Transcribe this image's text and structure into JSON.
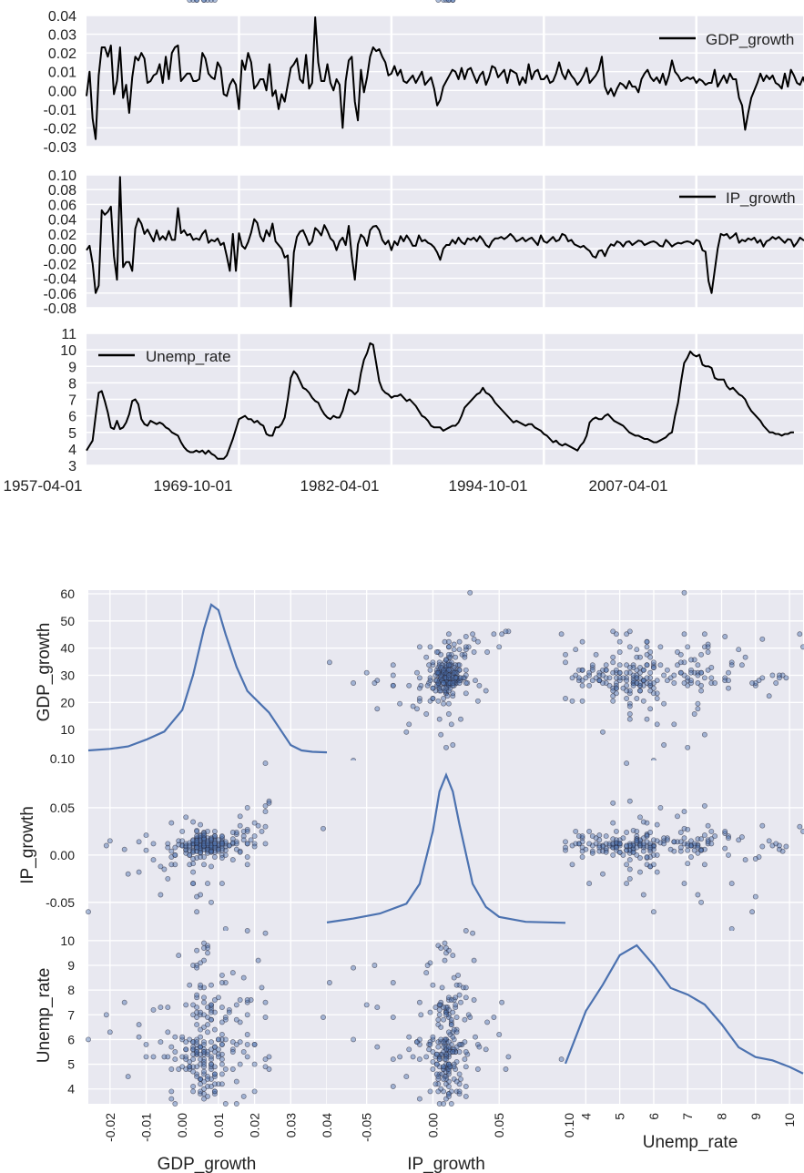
{
  "colors": {
    "panel_bg": "#e8e8f0",
    "grid": "#ffffff",
    "ts_line": "#000000",
    "kde_line": "#4c72b0",
    "scatter_fill": "#4c72b0",
    "scatter_edge": "#2a2a3a"
  },
  "chart_data": [
    {
      "type": "line",
      "series_name": "GDP_growth",
      "legend_label": "GDP_growth",
      "legend": "top-right",
      "grid": true,
      "ylim": [
        -0.03,
        0.04
      ],
      "yticks": [
        "0.04",
        "0.03",
        "0.02",
        "0.01",
        "0.00",
        "-0.01",
        "-0.02",
        "-0.03"
      ],
      "x_start": "1957-04-01",
      "x_end": "2016-01-01",
      "quarters": 236,
      "values": [
        -0.003,
        0.01,
        -0.015,
        -0.026,
        0.008,
        0.023,
        0.023,
        0.018,
        0.024,
        -0.002,
        0.005,
        0.023,
        -0.004,
        0.003,
        -0.012,
        0.007,
        0.018,
        0.016,
        0.02,
        0.017,
        0.004,
        0.005,
        0.008,
        0.009,
        0.014,
        0.004,
        0.018,
        0.006,
        0.02,
        0.023,
        0.024,
        0.005,
        0.007,
        0.009,
        0.009,
        0.005,
        0.005,
        0.006,
        0.02,
        0.017,
        0.009,
        0.007,
        0.006,
        0.015,
        0.012,
        -0.002,
        -0.003,
        0.003,
        0.006,
        0.003,
        -0.01,
        0.016,
        0.011,
        0.02,
        0.015,
        0.001,
        0.003,
        0.006,
        0.006,
        0.0,
        0.014,
        -0.003,
        0.0,
        -0.01,
        -0.002,
        -0.006,
        0.003,
        0.012,
        0.014,
        0.017,
        0.006,
        0.004,
        0.019,
        0.001,
        0.004,
        0.039,
        0.015,
        0.005,
        0.005,
        0.014,
        0.004,
        0.0,
        0.006,
        0.003,
        -0.02,
        0.005,
        0.016,
        0.018,
        -0.006,
        -0.016,
        0.011,
        -0.001,
        0.007,
        0.018,
        0.023,
        0.021,
        0.022,
        0.018,
        0.015,
        0.008,
        0.009,
        0.013,
        0.008,
        0.011,
        0.005,
        0.004,
        0.006,
        0.008,
        0.004,
        0.007,
        0.01,
        0.003,
        0.005,
        0.007,
        0.001,
        -0.008,
        -0.005,
        0.002,
        0.005,
        0.008,
        0.011,
        0.01,
        0.006,
        0.012,
        0.006,
        0.011,
        0.012,
        0.008,
        0.004,
        0.008,
        0.01,
        0.003,
        0.007,
        0.013,
        0.012,
        0.007,
        0.009,
        0.011,
        0.004,
        0.011,
        0.01,
        0.009,
        0.003,
        0.007,
        0.004,
        0.014,
        0.006,
        0.01,
        0.011,
        0.006,
        0.006,
        0.008,
        0.004,
        0.005,
        0.009,
        0.015,
        0.009,
        0.006,
        0.011,
        0.008,
        0.006,
        0.003,
        0.005,
        0.008,
        0.012,
        0.004,
        0.006,
        0.008,
        0.011,
        0.018,
        0.002,
        -0.002,
        0.001,
        -0.003,
        0.001,
        0.004,
        0.003,
        0.001,
        0.005,
        0.002,
        0.002,
        -0.001,
        0.006,
        0.009,
        0.011,
        0.007,
        0.005,
        0.007,
        0.004,
        0.009,
        0.003,
        0.008,
        0.016,
        0.01,
        0.008,
        0.005,
        0.006,
        0.007,
        0.006,
        0.007,
        0.004,
        0.006,
        0.005,
        0.003,
        0.004,
        0.004,
        0.011,
        0.002,
        0.005,
        0.008,
        0.004,
        0.009,
        0.006,
        0.006,
        -0.004,
        -0.008,
        -0.021,
        -0.012,
        -0.004,
        0.0,
        0.004,
        0.009,
        0.005,
        0.008,
        0.006,
        0.008,
        0.004,
        0.003,
        0.001,
        0.009,
        0.002,
        0.011,
        0.008,
        0.004,
        0.003,
        0.007,
        0.002,
        0.004,
        0.008,
        0.009,
        0.006
      ]
    },
    {
      "type": "line",
      "series_name": "IP_growth",
      "legend_label": "IP_growth",
      "legend": "top-right",
      "grid": true,
      "ylim": [
        -0.08,
        0.1
      ],
      "yticks": [
        "0.10",
        "0.08",
        "0.06",
        "0.04",
        "0.02",
        "0.00",
        "-0.02",
        "-0.04",
        "-0.06",
        "-0.08"
      ],
      "x_start": "1957-04-01",
      "x_end": "2016-01-01",
      "quarters": 236,
      "values": [
        -0.002,
        0.004,
        -0.02,
        -0.06,
        -0.05,
        0.052,
        0.046,
        0.05,
        0.057,
        -0.01,
        -0.042,
        0.097,
        -0.025,
        -0.018,
        -0.018,
        -0.03,
        0.027,
        0.041,
        0.034,
        0.02,
        0.026,
        0.018,
        0.01,
        0.025,
        0.012,
        0.017,
        0.012,
        0.024,
        0.012,
        0.012,
        0.055,
        0.021,
        0.025,
        0.018,
        0.02,
        0.012,
        0.014,
        0.012,
        0.02,
        0.025,
        0.008,
        0.012,
        0.01,
        0.014,
        0.005,
        0.008,
        -0.01,
        -0.03,
        0.02,
        -0.03,
        0.021,
        0.004,
        0.0,
        0.009,
        0.022,
        0.04,
        0.035,
        0.017,
        0.01,
        0.025,
        0.017,
        0.034,
        0.01,
        0.005,
        0.0,
        -0.012,
        -0.009,
        -0.078,
        -0.005,
        0.016,
        0.023,
        0.025,
        0.016,
        0.005,
        0.01,
        0.028,
        0.024,
        0.018,
        0.032,
        0.024,
        0.014,
        0.01,
        -0.002,
        0.01,
        0.015,
        0.005,
        0.031,
        -0.01,
        -0.042,
        0.006,
        0.019,
        0.015,
        0.004,
        0.025,
        0.03,
        0.031,
        0.025,
        0.012,
        0.006,
        0.011,
        -0.002,
        0.01,
        0.005,
        0.017,
        0.01,
        0.018,
        0.012,
        0.004,
        0.004,
        0.018,
        0.01,
        0.012,
        0.008,
        0.006,
        0.002,
        -0.005,
        -0.015,
        0.0,
        0.005,
        0.005,
        0.012,
        0.007,
        0.015,
        0.009,
        0.006,
        0.014,
        0.012,
        0.015,
        0.01,
        0.017,
        0.012,
        0.005,
        0.002,
        0.01,
        0.014,
        0.014,
        0.016,
        0.013,
        0.016,
        0.02,
        0.016,
        0.01,
        0.012,
        0.015,
        0.01,
        0.013,
        0.015,
        0.01,
        0.005,
        0.018,
        0.01,
        0.008,
        0.012,
        0.016,
        0.01,
        0.012,
        0.02,
        0.018,
        0.01,
        0.012,
        0.006,
        0.004,
        0.002,
        0.004,
        0.0,
        -0.003,
        -0.01,
        -0.012,
        -0.003,
        -0.002,
        -0.01,
        0.0,
        0.006,
        0.004,
        0.01,
        0.008,
        0.003,
        0.009,
        0.01,
        0.005,
        0.008,
        0.011,
        0.01,
        0.005,
        0.007,
        0.009,
        0.01,
        0.008,
        0.004,
        0.003,
        0.012,
        0.008,
        0.003,
        0.006,
        0.008,
        0.007,
        0.009,
        0.01,
        0.009,
        0.006,
        0.012,
        0.01,
        -0.002,
        -0.004,
        -0.044,
        -0.06,
        -0.03,
        0.0,
        0.02,
        0.018,
        0.02,
        0.014,
        0.017,
        0.021,
        0.008,
        0.012,
        0.01,
        0.014,
        0.012,
        0.015,
        0.008,
        0.012,
        0.003,
        0.01,
        0.012,
        0.016,
        0.013,
        0.016,
        0.012,
        0.008,
        0.013,
        0.012,
        0.003,
        0.008,
        0.015,
        0.012,
        0.01,
        0.015,
        0.004,
        0.012
      ]
    },
    {
      "type": "line",
      "series_name": "Unemp_rate",
      "legend_label": "Unemp_rate",
      "legend": "top-left",
      "grid": true,
      "ylim": [
        3,
        11
      ],
      "yticks": [
        "11",
        "10",
        "9",
        "8",
        "7",
        "6",
        "5",
        "4",
        "3"
      ],
      "x_start": "1957-04-01",
      "x_end": "2016-01-01",
      "quarters": 236,
      "xtick_labels": [
        "1957-04-01",
        "1969-10-01",
        "1982-04-01",
        "1994-10-01",
        "2007-04-01"
      ],
      "values": [
        3.9,
        4.2,
        4.5,
        6.0,
        7.4,
        7.5,
        6.9,
        6.2,
        5.3,
        5.2,
        5.7,
        5.2,
        5.3,
        5.6,
        6.1,
        6.9,
        7.0,
        6.7,
        5.8,
        5.5,
        5.4,
        5.7,
        5.6,
        5.5,
        5.6,
        5.5,
        5.3,
        5.2,
        5.0,
        4.9,
        4.8,
        4.4,
        4.1,
        3.9,
        3.8,
        3.8,
        3.9,
        3.8,
        3.9,
        3.7,
        3.9,
        3.7,
        3.6,
        3.4,
        3.4,
        3.4,
        3.6,
        4.1,
        4.6,
        5.2,
        5.8,
        5.9,
        6.0,
        5.8,
        5.8,
        5.6,
        5.7,
        5.5,
        5.4,
        4.9,
        4.8,
        4.8,
        5.3,
        5.3,
        5.5,
        5.9,
        7.0,
        8.3,
        8.7,
        8.5,
        8.1,
        7.7,
        7.6,
        7.4,
        7.1,
        6.9,
        6.8,
        6.4,
        6.1,
        5.9,
        5.8,
        6.0,
        5.9,
        5.9,
        6.3,
        7.0,
        7.6,
        7.5,
        7.3,
        7.5,
        8.6,
        9.4,
        9.8,
        10.4,
        10.3,
        9.2,
        8.1,
        7.6,
        7.4,
        7.3,
        7.1,
        7.2,
        7.2,
        7.3,
        7.1,
        6.9,
        7.0,
        6.8,
        6.6,
        6.3,
        6.0,
        5.9,
        5.7,
        5.4,
        5.3,
        5.3,
        5.3,
        5.1,
        5.2,
        5.3,
        5.4,
        5.4,
        5.6,
        6.0,
        6.5,
        6.7,
        6.9,
        7.1,
        7.3,
        7.4,
        7.7,
        7.4,
        7.3,
        7.1,
        6.8,
        6.6,
        6.4,
        6.2,
        6.0,
        5.8,
        5.6,
        5.7,
        5.6,
        5.5,
        5.4,
        5.5,
        5.5,
        5.3,
        5.2,
        5.1,
        4.9,
        4.8,
        4.6,
        4.4,
        4.5,
        4.3,
        4.2,
        4.3,
        4.2,
        4.1,
        4.0,
        3.9,
        4.2,
        4.4,
        4.8,
        5.6,
        5.8,
        5.9,
        5.8,
        5.8,
        6.0,
        6.1,
        5.9,
        5.7,
        5.6,
        5.5,
        5.4,
        5.2,
        5.0,
        4.9,
        4.8,
        4.8,
        4.7,
        4.6,
        4.6,
        4.5,
        4.4,
        4.4,
        4.5,
        4.6,
        4.7,
        4.9,
        5.0,
        6.0,
        6.8,
        8.1,
        9.2,
        9.5,
        9.9,
        9.7,
        9.6,
        9.7,
        9.1,
        9.0,
        9.0,
        8.9,
        8.3,
        8.2,
        8.2,
        8.2,
        7.8,
        7.6,
        7.7,
        7.5,
        7.3,
        7.2,
        7.0,
        6.6,
        6.3,
        6.1,
        5.9,
        5.7,
        5.4,
        5.2,
        5.0,
        5.0,
        4.9,
        4.9,
        4.8,
        4.9,
        4.9,
        5.0,
        5.0
      ]
    },
    {
      "type": "scatter_matrix",
      "variables": [
        "GDP_growth",
        "IP_growth",
        "Unemp_rate"
      ],
      "diagonal": "kde",
      "grid": true,
      "axis_labels_left": [
        "GDP_growth",
        "IP_growth",
        "Unemp_rate"
      ],
      "axis_labels_bottom": [
        "GDP_growth",
        "IP_growth",
        "Unemp_rate"
      ],
      "ranges": {
        "GDP_growth": [
          -0.026,
          0.04
        ],
        "IP_growth": [
          -0.08,
          0.1
        ],
        "Unemp_rate": [
          3.4,
          10.4
        ]
      },
      "row0_left_tick_range": [
        0,
        60
      ],
      "left_ticks_row0": [
        "60",
        "50",
        "40",
        "30",
        "20",
        "10",
        "0.10"
      ],
      "left_ticks_row1": [
        "0.05",
        "0.00",
        "-0.05"
      ],
      "left_ticks_row2": [
        "10",
        "9",
        "8",
        "7",
        "6",
        "5",
        "4"
      ],
      "bottom_ticks_col0": [
        "-0.02",
        "-0.01",
        "0.00",
        "0.01",
        "0.02",
        "0.03",
        "0.04"
      ],
      "bottom_ticks_col1": [
        "-0.05",
        "0.00",
        "0.05",
        "0.10"
      ],
      "bottom_ticks_col2": [
        "4",
        "5",
        "6",
        "7",
        "8",
        "9",
        "10"
      ],
      "kde_GDP_growth": {
        "x": [
          -0.026,
          -0.02,
          -0.015,
          -0.01,
          -0.005,
          0.0,
          0.003,
          0.006,
          0.008,
          0.01,
          0.012,
          0.015,
          0.018,
          0.021,
          0.024,
          0.027,
          0.03,
          0.033,
          0.036,
          0.04
        ],
        "density": [
          1,
          1.6,
          2.5,
          5,
          8,
          16,
          29,
          46,
          55,
          53,
          44,
          32,
          23,
          19,
          15,
          9,
          3,
          1,
          0.5,
          0.3
        ]
      },
      "kde_IP_growth": {
        "x": [
          -0.08,
          -0.06,
          -0.04,
          -0.02,
          -0.01,
          0.0,
          0.005,
          0.01,
          0.015,
          0.02,
          0.03,
          0.04,
          0.05,
          0.07,
          0.1
        ],
        "density": [
          0.3,
          1.5,
          3,
          6,
          12,
          28,
          40,
          45,
          40,
          30,
          12,
          5,
          2,
          0.5,
          0.2
        ]
      },
      "kde_Unemp_rate": {
        "x": [
          3.4,
          4.0,
          4.5,
          5.0,
          5.5,
          6.0,
          6.5,
          7.0,
          7.5,
          8.0,
          8.5,
          9.0,
          9.5,
          10.0,
          10.4
        ],
        "density": [
          0.05,
          0.13,
          0.17,
          0.215,
          0.23,
          0.2,
          0.165,
          0.155,
          0.14,
          0.11,
          0.075,
          0.06,
          0.055,
          0.045,
          0.035
        ]
      }
    }
  ]
}
